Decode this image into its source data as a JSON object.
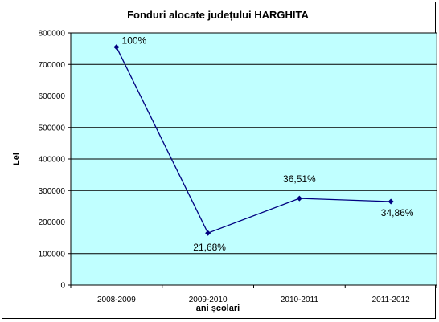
{
  "chart_data": {
    "type": "line",
    "title": "Fonduri alocate județului HARGHITA",
    "xlabel": "ani școlari",
    "ylabel": "Lei",
    "categories": [
      "2008-2009",
      "2009-2010",
      "2010-2011",
      "2011-2012"
    ],
    "series": [
      {
        "values": [
          755000,
          165000,
          275000,
          265000
        ],
        "data_labels": [
          "100%",
          "21,68%",
          "36,51%",
          "34,86%"
        ]
      }
    ],
    "ylim": [
      0,
      800000
    ],
    "yticks": [
      0,
      100000,
      200000,
      300000,
      400000,
      500000,
      600000,
      700000,
      800000
    ],
    "grid": true,
    "legend": "none",
    "colors": {
      "plot_background": "#c0ffff",
      "line": "#000080",
      "gridline": "#000000"
    }
  }
}
